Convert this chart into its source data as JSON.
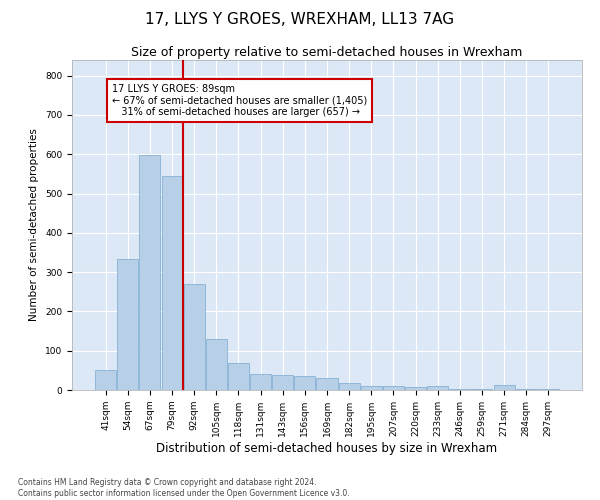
{
  "title": "17, LLYS Y GROES, WREXHAM, LL13 7AG",
  "subtitle": "Size of property relative to semi-detached houses in Wrexham",
  "xlabel": "Distribution of semi-detached houses by size in Wrexham",
  "ylabel": "Number of semi-detached properties",
  "categories": [
    "41sqm",
    "54sqm",
    "67sqm",
    "79sqm",
    "92sqm",
    "105sqm",
    "118sqm",
    "131sqm",
    "143sqm",
    "156sqm",
    "169sqm",
    "182sqm",
    "195sqm",
    "207sqm",
    "220sqm",
    "233sqm",
    "246sqm",
    "259sqm",
    "271sqm",
    "284sqm",
    "297sqm"
  ],
  "values": [
    52,
    333,
    597,
    545,
    270,
    130,
    68,
    42,
    38,
    35,
    30,
    18,
    10,
    9,
    8,
    9,
    2,
    2,
    14,
    2,
    2
  ],
  "bar_color": "#b8cfe8",
  "bar_edge_color": "#7aaad0",
  "vline_color": "#cc0000",
  "vline_x_index": 4,
  "annotation_text_line1": "17 LLYS Y GROES: 89sqm",
  "annotation_text_line2": "← 67% of semi-detached houses are smaller (1,405)",
  "annotation_text_line3": "   31% of semi-detached houses are larger (657) →",
  "annotation_box_color": "#ffffff",
  "annotation_box_edge": "#cc0000",
  "footer_text": "Contains HM Land Registry data © Crown copyright and database right 2024.\nContains public sector information licensed under the Open Government Licence v3.0.",
  "ylim": [
    0,
    840
  ],
  "yticks": [
    0,
    100,
    200,
    300,
    400,
    500,
    600,
    700,
    800
  ],
  "background_color": "#dce8f5",
  "grid_color": "#ffffff",
  "title_fontsize": 11,
  "subtitle_fontsize": 9,
  "tick_fontsize": 6.5,
  "ylabel_fontsize": 7.5,
  "xlabel_fontsize": 8.5
}
